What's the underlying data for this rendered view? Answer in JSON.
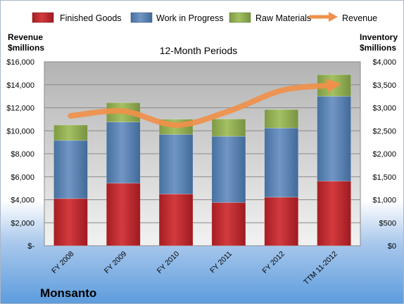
{
  "company": "Monsanto",
  "chart_data": {
    "type": "bar",
    "stacked": true,
    "subtitle": "12-Month Periods",
    "categories": [
      "FY 2008",
      "FY 2009",
      "FY 2010",
      "FY 2011",
      "FY 2012",
      "TTM 11-2012"
    ],
    "left_axis": {
      "label_line1": "Revenue",
      "label_line2": "$millions",
      "ylim": [
        0,
        16000
      ],
      "ticks": [
        0,
        2000,
        4000,
        6000,
        8000,
        10000,
        12000,
        14000,
        16000
      ],
      "tick_labels": [
        "$-",
        "$2,000",
        "$4,000",
        "$6,000",
        "$8,000",
        "$10,000",
        "$12,000",
        "$14,000",
        "$16,000"
      ]
    },
    "right_axis": {
      "label_line1": "Inventory",
      "label_line2": "$millions",
      "ylim": [
        0,
        4000
      ],
      "ticks": [
        0,
        500,
        1000,
        1500,
        2000,
        2500,
        3000,
        3500,
        4000
      ],
      "tick_labels": [
        "$0",
        "$500",
        "$1,000",
        "$1,500",
        "$2,000",
        "$2,500",
        "$3,000",
        "$3,500",
        "$4,000"
      ]
    },
    "series": [
      {
        "name": "Finished Goods",
        "axis": "right",
        "color": "#c0272d",
        "values": [
          1025,
          1360,
          1125,
          940,
          1055,
          1405
        ]
      },
      {
        "name": "Work in Progress",
        "axis": "right",
        "color": "#4f81bd",
        "values": [
          1265,
          1330,
          1295,
          1440,
          1505,
          1845
        ]
      },
      {
        "name": "Raw Materials",
        "axis": "right",
        "color": "#9bbb59",
        "values": [
          335,
          420,
          330,
          375,
          400,
          470
        ]
      },
      {
        "name": "Revenue",
        "axis": "left",
        "type": "line",
        "color": "#f0904a",
        "values": [
          11300,
          11700,
          10500,
          11700,
          13500,
          14000
        ]
      }
    ],
    "grid": true,
    "legend_position": "top"
  }
}
